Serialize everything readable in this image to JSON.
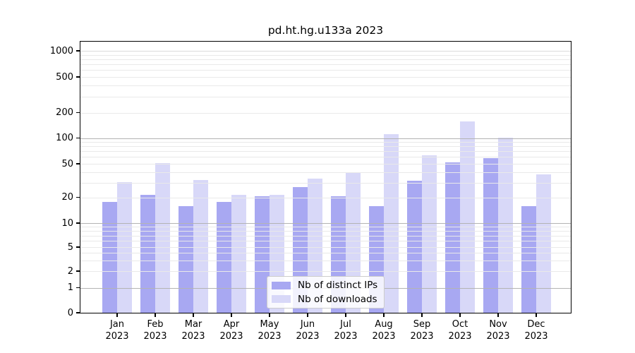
{
  "title": "pd.ht.hg.u133a 2023",
  "chart_data": {
    "type": "bar",
    "title": "pd.ht.hg.u133a 2023",
    "categories": [
      "Jan",
      "Feb",
      "Mar",
      "Apr",
      "May",
      "Jun",
      "Jul",
      "Aug",
      "Sep",
      "Oct",
      "Nov",
      "Dec"
    ],
    "year_label": "2023",
    "series": [
      {
        "name": "Nb of distinct IPs",
        "color": "#a8a8f2",
        "values": [
          18,
          22,
          16,
          18,
          21,
          27,
          21,
          16,
          32,
          53,
          59,
          16
        ]
      },
      {
        "name": "Nb of downloads",
        "color": "#d8d8f8",
        "values": [
          31,
          52,
          33,
          22,
          22,
          34,
          40,
          113,
          64,
          161,
          104,
          38
        ]
      }
    ],
    "yticks": [
      0,
      1,
      2,
      5,
      10,
      20,
      50,
      100,
      200,
      500,
      1000
    ],
    "yscale": "log-like with 0 baseline",
    "ylim": [
      0,
      1000
    ],
    "xlabel": "",
    "ylabel": "",
    "grid": "on, horizontal, majors at 1/10/100 darker, drawn above bars",
    "legend_position": "bottom-center inside plot"
  },
  "colors": {
    "bar_dark": "#a8a8f2",
    "bar_light": "#d8d8f8",
    "grid_major": "#b3b3b3",
    "grid_minor": "#e9e9e9",
    "grid_top_decade": "#dcdcdc",
    "axis": "#000000",
    "legend_border": "#cccccc"
  }
}
